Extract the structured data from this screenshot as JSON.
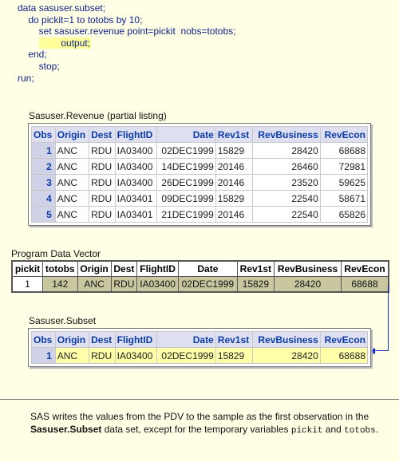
{
  "code": {
    "lines": [
      "data sasuser.subset;",
      "    do pickit=1 to totobs by 10;",
      "        set sasuser.revenue point=pickit  nobs=totobs;",
      "        output;",
      "    end;",
      "        stop;",
      "run;"
    ]
  },
  "revenue": {
    "title": "Sasuser.Revenue (partial listing)",
    "headers": [
      "Obs",
      "Origin",
      "Dest",
      "FlightID",
      "Date",
      "Rev1st",
      "RevBusiness",
      "RevEcon"
    ],
    "rows": [
      [
        "1",
        "ANC",
        "RDU",
        "IA03400",
        "02DEC1999",
        "15829",
        "28420",
        "68688"
      ],
      [
        "2",
        "ANC",
        "RDU",
        "IA03400",
        "14DEC1999",
        "20146",
        "26460",
        "72981"
      ],
      [
        "3",
        "ANC",
        "RDU",
        "IA03400",
        "26DEC1999",
        "20146",
        "23520",
        "59625"
      ],
      [
        "4",
        "ANC",
        "RDU",
        "IA03401",
        "09DEC1999",
        "15829",
        "22540",
        "58671"
      ],
      [
        "5",
        "ANC",
        "RDU",
        "IA03401",
        "21DEC1999",
        "20146",
        "22540",
        "65826"
      ]
    ]
  },
  "pdv": {
    "title": "Program Data Vector",
    "headers": [
      "pickit",
      "totobs",
      "Origin",
      "Dest",
      "FlightID",
      "Date",
      "Rev1st",
      "RevBusiness",
      "RevEcon"
    ],
    "values": [
      "1",
      "142",
      "ANC",
      "RDU",
      "IA03400",
      "02DEC1999",
      "15829",
      "28420",
      "68688"
    ]
  },
  "subset": {
    "title": "Sasuser.Subset",
    "headers": [
      "Obs",
      "Origin",
      "Dest",
      "FlightID",
      "Date",
      "Rev1st",
      "RevBusiness",
      "RevEcon"
    ],
    "row": [
      "1",
      "ANC",
      "RDU",
      "IA03400",
      "02DEC1999",
      "15829",
      "28420",
      "68688"
    ]
  },
  "note": {
    "part1": "SAS writes the values from the PDV to the sample as the first observation in the ",
    "dataset": "Sasuser.Subset",
    "part2": " data set, except for the temporary variables ",
    "var1": "pickit",
    "part3": " and ",
    "var2": "totobs",
    "part4": "."
  },
  "colors": {
    "background": "#ffffe6",
    "header_blue": "#0a3ba8",
    "pdv_fill": "#c9c7a0",
    "highlight": "#ffff99",
    "arrow": "#0a2ad0"
  }
}
